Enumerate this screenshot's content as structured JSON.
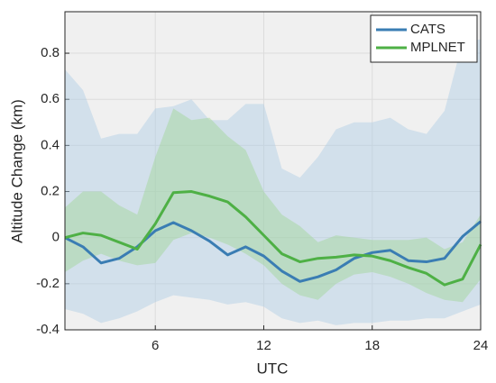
{
  "chart_data": {
    "type": "line",
    "x_label": "UTC",
    "y_label": "Altitude Change (km)",
    "x": [
      1,
      2,
      3,
      4,
      5,
      6,
      7,
      8,
      9,
      10,
      11,
      12,
      13,
      14,
      15,
      16,
      17,
      18,
      19,
      20,
      21,
      22,
      23,
      24
    ],
    "xlim": [
      1,
      24
    ],
    "xticks": [
      6,
      12,
      18,
      24
    ],
    "ylim": [
      -0.4,
      0.98
    ],
    "yticks": [
      -0.4,
      -0.2,
      0,
      0.2,
      0.4,
      0.6,
      0.8
    ],
    "grid": true,
    "legend": "upper right",
    "series": [
      {
        "name": "CATS",
        "color": "#3a7db3",
        "band_color": "#aecde5",
        "values": [
          0,
          -0.04,
          -0.11,
          -0.09,
          -0.04,
          0.03,
          0.065,
          0.03,
          -0.015,
          -0.075,
          -0.04,
          -0.08,
          -0.145,
          -0.19,
          -0.17,
          -0.14,
          -0.09,
          -0.065,
          -0.055,
          -0.1,
          -0.105,
          -0.09,
          0.005,
          0.07
        ],
        "upper": [
          0.73,
          0.64,
          0.43,
          0.45,
          0.45,
          0.56,
          0.57,
          0.6,
          0.51,
          0.51,
          0.58,
          0.58,
          0.3,
          0.26,
          0.35,
          0.47,
          0.5,
          0.5,
          0.52,
          0.47,
          0.45,
          0.55,
          0.85,
          0.86
        ],
        "lower": [
          -0.31,
          -0.33,
          -0.37,
          -0.35,
          -0.32,
          -0.28,
          -0.25,
          -0.26,
          -0.27,
          -0.29,
          -0.28,
          -0.3,
          -0.35,
          -0.37,
          -0.36,
          -0.38,
          -0.37,
          -0.37,
          -0.36,
          -0.36,
          -0.35,
          -0.35,
          -0.32,
          -0.29
        ]
      },
      {
        "name": "MPLNET",
        "color": "#4eb045",
        "band_color": "#9fd494",
        "values": [
          0,
          0.02,
          0.01,
          -0.02,
          -0.05,
          0.06,
          0.195,
          0.2,
          0.18,
          0.155,
          0.09,
          0.01,
          -0.07,
          -0.105,
          -0.09,
          -0.085,
          -0.075,
          -0.08,
          -0.1,
          -0.13,
          -0.155,
          -0.205,
          -0.18,
          -0.03
        ],
        "upper": [
          0.13,
          0.2,
          0.2,
          0.14,
          0.1,
          0.35,
          0.56,
          0.51,
          0.52,
          0.44,
          0.38,
          0.2,
          0.1,
          0.05,
          -0.02,
          0.01,
          0,
          -0.01,
          -0.01,
          -0.01,
          0,
          -0.05,
          -0.02,
          0.1
        ],
        "lower": [
          -0.15,
          -0.1,
          -0.07,
          -0.1,
          -0.12,
          -0.11,
          -0.01,
          0.02,
          0,
          -0.03,
          -0.07,
          -0.12,
          -0.2,
          -0.25,
          -0.27,
          -0.2,
          -0.16,
          -0.15,
          -0.17,
          -0.2,
          -0.24,
          -0.27,
          -0.28,
          -0.18
        ]
      }
    ]
  }
}
